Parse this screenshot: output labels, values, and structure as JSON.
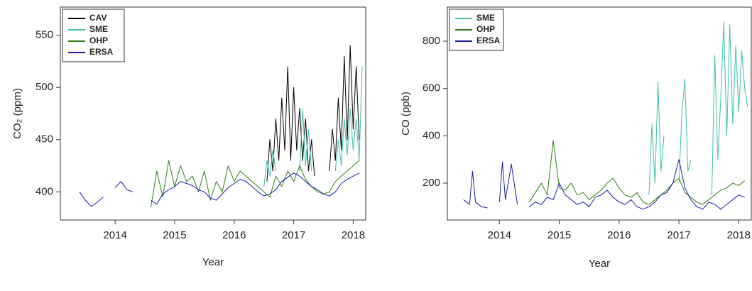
{
  "chart_data": [
    {
      "type": "line",
      "y_label": "CO₂ (ppm)",
      "x_label": "Year",
      "legend": "upper left",
      "xlim": [
        2013.08,
        2018.21
      ],
      "ylim": [
        373,
        577
      ],
      "xticks": [
        2014,
        2015,
        2016,
        2017,
        2018
      ],
      "yticks": [
        400,
        450,
        500,
        550
      ],
      "series": [
        {
          "name": "CAV",
          "color": "#000000",
          "x": [
            2016.55,
            2016.6,
            2016.65,
            2016.7,
            2016.75,
            2016.8,
            2016.85,
            2016.9,
            2016.95,
            2017.0,
            2017.05,
            2017.1,
            2017.15,
            2017.2,
            2017.25,
            2017.3,
            2017.35,
            2017.45,
            2017.6,
            2017.65,
            2017.7,
            2017.75,
            2017.8,
            2017.85,
            2017.9,
            2017.95,
            2018.0,
            2018.05,
            2018.1
          ],
          "values": [
            410,
            450,
            420,
            470,
            430,
            490,
            440,
            520,
            430,
            500,
            440,
            480,
            430,
            470,
            420,
            450,
            415,
            null,
            420,
            460,
            430,
            490,
            440,
            530,
            450,
            540,
            460,
            520,
            450
          ]
        },
        {
          "name": "SME",
          "color": "#3dbfae",
          "x": [
            2016.5,
            2016.55,
            2016.6,
            2016.65,
            2016.7,
            2016.85,
            2017.1,
            2017.15,
            2017.2,
            2017.25,
            2017.3,
            2017.5,
            2017.7,
            2017.75,
            2017.8,
            2017.85,
            2017.9,
            2017.95,
            2018.0,
            2018.05,
            2018.1,
            2018.15
          ],
          "values": [
            405,
            430,
            415,
            440,
            420,
            null,
            420,
            480,
            425,
            460,
            420,
            null,
            420,
            450,
            425,
            470,
            435,
            480,
            440,
            470,
            430,
            520
          ]
        },
        {
          "name": "OHP",
          "color": "#2e7d0f",
          "x": [
            2014.6,
            2014.7,
            2014.8,
            2014.9,
            2015.0,
            2015.1,
            2015.2,
            2015.3,
            2015.4,
            2015.5,
            2015.6,
            2015.7,
            2015.8,
            2015.9,
            2016.0,
            2016.1,
            2016.2,
            2016.3,
            2016.4,
            2016.5,
            2016.6,
            2016.7,
            2016.8,
            2016.9,
            2017.0,
            2017.1,
            2017.2,
            2017.3,
            2017.4,
            2017.5,
            2017.6,
            2017.7,
            2017.8,
            2017.9,
            2018.0,
            2018.1
          ],
          "values": [
            385,
            420,
            395,
            430,
            405,
            425,
            410,
            415,
            400,
            420,
            392,
            410,
            400,
            425,
            410,
            420,
            415,
            410,
            405,
            400,
            395,
            415,
            405,
            420,
            410,
            425,
            412,
            405,
            400,
            398,
            400,
            410,
            415,
            420,
            425,
            430
          ]
        },
        {
          "name": "ERSA",
          "color": "#1a1aa8",
          "x": [
            2013.4,
            2013.5,
            2013.6,
            2013.7,
            2013.8,
            2013.9,
            2014.0,
            2014.1,
            2014.2,
            2014.3,
            2014.4,
            2014.6,
            2014.7,
            2014.8,
            2014.9,
            2015.0,
            2015.1,
            2015.2,
            2015.3,
            2015.4,
            2015.5,
            2015.6,
            2015.7,
            2015.8,
            2015.9,
            2016.0,
            2016.1,
            2016.2,
            2016.3,
            2016.4,
            2016.5,
            2016.6,
            2016.7,
            2016.8,
            2016.9,
            2017.0,
            2017.1,
            2017.2,
            2017.3,
            2017.4,
            2017.5,
            2017.6,
            2017.7,
            2017.8,
            2017.9,
            2018.0,
            2018.1
          ],
          "values": [
            400,
            392,
            386,
            390,
            395,
            null,
            404,
            410,
            402,
            400,
            null,
            392,
            388,
            398,
            402,
            405,
            410,
            408,
            406,
            402,
            400,
            394,
            392,
            398,
            404,
            408,
            412,
            410,
            405,
            400,
            396,
            398,
            402,
            410,
            414,
            418,
            415,
            410,
            405,
            402,
            398,
            396,
            400,
            408,
            412,
            415,
            418
          ]
        }
      ]
    },
    {
      "type": "line",
      "y_label": "CO (ppb)",
      "x_label": "Year",
      "legend": "upper left",
      "xlim": [
        2013.13,
        2018.21
      ],
      "ylim": [
        44,
        944
      ],
      "xticks": [
        2014,
        2015,
        2016,
        2017,
        2018
      ],
      "yticks": [
        200,
        400,
        600,
        800
      ],
      "series": [
        {
          "name": "SME",
          "color": "#3dbfae",
          "x": [
            2016.5,
            2016.55,
            2016.6,
            2016.65,
            2016.7,
            2016.75,
            2016.85,
            2017.0,
            2017.05,
            2017.1,
            2017.15,
            2017.2,
            2017.35,
            2017.55,
            2017.6,
            2017.65,
            2017.7,
            2017.75,
            2017.8,
            2017.85,
            2017.9,
            2017.95,
            2018.0,
            2018.05,
            2018.1,
            2018.15
          ],
          "values": [
            150,
            450,
            200,
            630,
            250,
            400,
            null,
            200,
            500,
            640,
            250,
            300,
            null,
            150,
            740,
            300,
            560,
            880,
            400,
            870,
            450,
            780,
            500,
            760,
            600,
            520
          ]
        },
        {
          "name": "OHP",
          "color": "#2e7d0f",
          "x": [
            2014.5,
            2014.6,
            2014.7,
            2014.8,
            2014.9,
            2015.0,
            2015.1,
            2015.2,
            2015.3,
            2015.4,
            2015.5,
            2015.6,
            2015.7,
            2015.8,
            2015.9,
            2016.0,
            2016.1,
            2016.2,
            2016.3,
            2016.4,
            2016.5,
            2016.6,
            2016.7,
            2016.8,
            2016.9,
            2017.0,
            2017.1,
            2017.2,
            2017.3,
            2017.4,
            2017.5,
            2017.6,
            2017.7,
            2017.8,
            2017.9,
            2018.0,
            2018.1
          ],
          "values": [
            120,
            160,
            200,
            150,
            380,
            180,
            170,
            200,
            150,
            160,
            130,
            150,
            170,
            200,
            220,
            180,
            150,
            140,
            160,
            120,
            110,
            130,
            150,
            170,
            200,
            220,
            160,
            140,
            120,
            110,
            130,
            150,
            170,
            180,
            200,
            190,
            210
          ]
        },
        {
          "name": "ERSA",
          "color": "#1a1aa8",
          "x": [
            2013.4,
            2013.5,
            2013.55,
            2013.6,
            2013.7,
            2013.8,
            2013.9,
            2014.0,
            2014.05,
            2014.1,
            2014.2,
            2014.3,
            2014.4,
            2014.5,
            2014.6,
            2014.7,
            2014.8,
            2014.9,
            2015.0,
            2015.1,
            2015.2,
            2015.3,
            2015.4,
            2015.5,
            2015.6,
            2015.7,
            2015.8,
            2015.9,
            2016.0,
            2016.1,
            2016.2,
            2016.3,
            2016.4,
            2016.5,
            2016.6,
            2016.7,
            2016.8,
            2016.9,
            2017.0,
            2017.1,
            2017.2,
            2017.3,
            2017.4,
            2017.5,
            2017.6,
            2017.7,
            2017.8,
            2017.9,
            2018.0,
            2018.1
          ],
          "values": [
            130,
            110,
            250,
            120,
            100,
            95,
            null,
            120,
            290,
            130,
            280,
            110,
            null,
            100,
            120,
            110,
            140,
            130,
            200,
            150,
            130,
            110,
            120,
            100,
            140,
            150,
            170,
            140,
            120,
            110,
            130,
            100,
            90,
            100,
            120,
            150,
            160,
            200,
            300,
            180,
            130,
            100,
            90,
            120,
            110,
            90,
            110,
            130,
            150,
            140
          ]
        }
      ]
    }
  ]
}
